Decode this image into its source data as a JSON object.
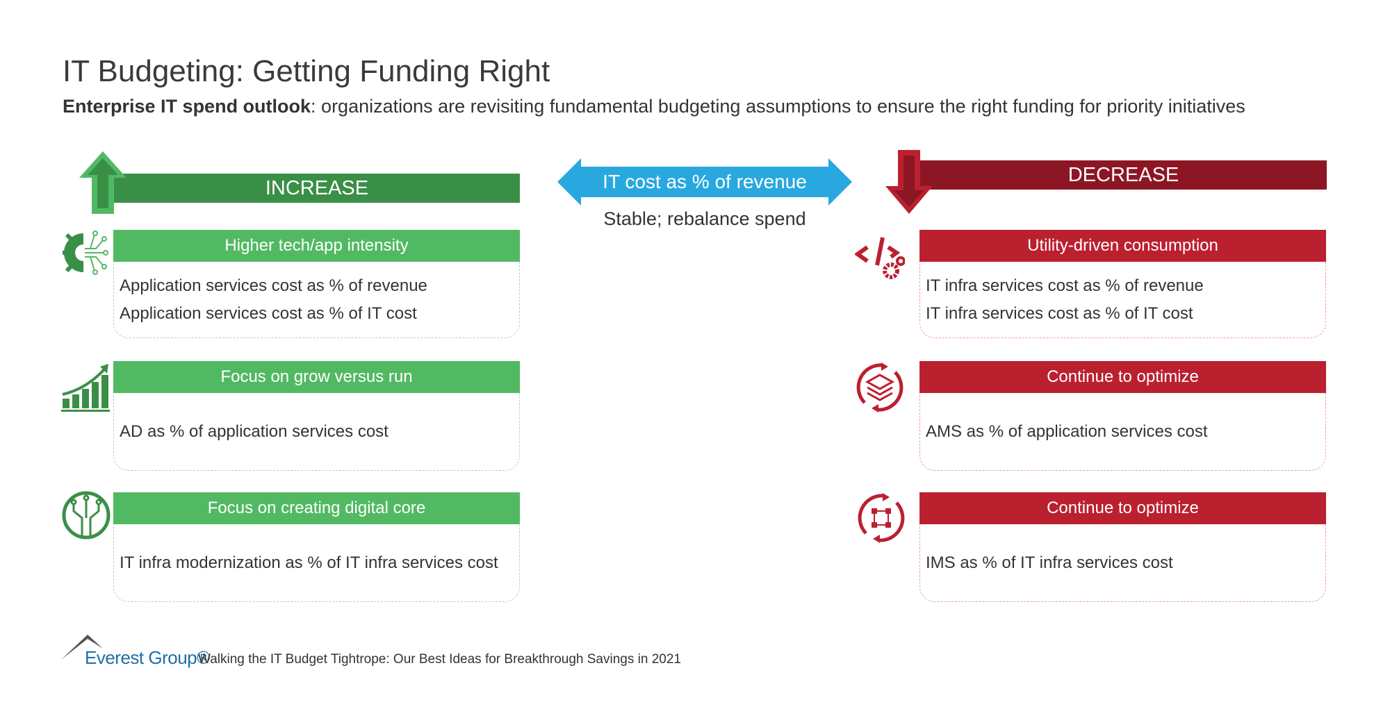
{
  "title": "IT Budgeting: Getting Funding Right",
  "subtitle": {
    "bold": "Enterprise IT spend outlook",
    "rest": ": organizations are revisiting fundamental budgeting assumptions to ensure the right funding for priority initiatives"
  },
  "increase": {
    "label": "INCREASE",
    "color": "#3a8f47",
    "cards": [
      {
        "header": "Higher tech/app intensity",
        "items": [
          "Application services cost as % of revenue",
          "Application services cost as % of IT cost"
        ],
        "icon": "gear-circuit-icon"
      },
      {
        "header": "Focus on grow versus run",
        "items": [
          "AD as % of application services cost"
        ],
        "icon": "growth-chart-icon"
      },
      {
        "header": "Focus on creating digital core",
        "items": [
          "IT infra modernization as % of IT infra services cost"
        ],
        "icon": "digital-core-icon"
      }
    ]
  },
  "center": {
    "label": "IT cost as % of revenue",
    "note": "Stable; rebalance spend",
    "color": "#29a8e0"
  },
  "decrease": {
    "label": "DECREASE",
    "color": "#8d1624",
    "cards": [
      {
        "header": "Utility-driven consumption",
        "items": [
          "IT infra services cost as % of revenue",
          "IT infra services cost as % of IT cost"
        ],
        "icon": "code-gears-icon"
      },
      {
        "header": "Continue to optimize",
        "items": [
          "AMS as % of application services cost"
        ],
        "icon": "layers-cycle-icon"
      },
      {
        "header": "Continue to optimize",
        "items": [
          "IMS as % of IT infra services cost"
        ],
        "icon": "infra-cycle-icon"
      }
    ]
  },
  "footer": {
    "logo": "Everest Group®",
    "text": "Walking the IT Budget Tightrope: Our Best Ideas for Breakthrough Savings in 2021"
  }
}
